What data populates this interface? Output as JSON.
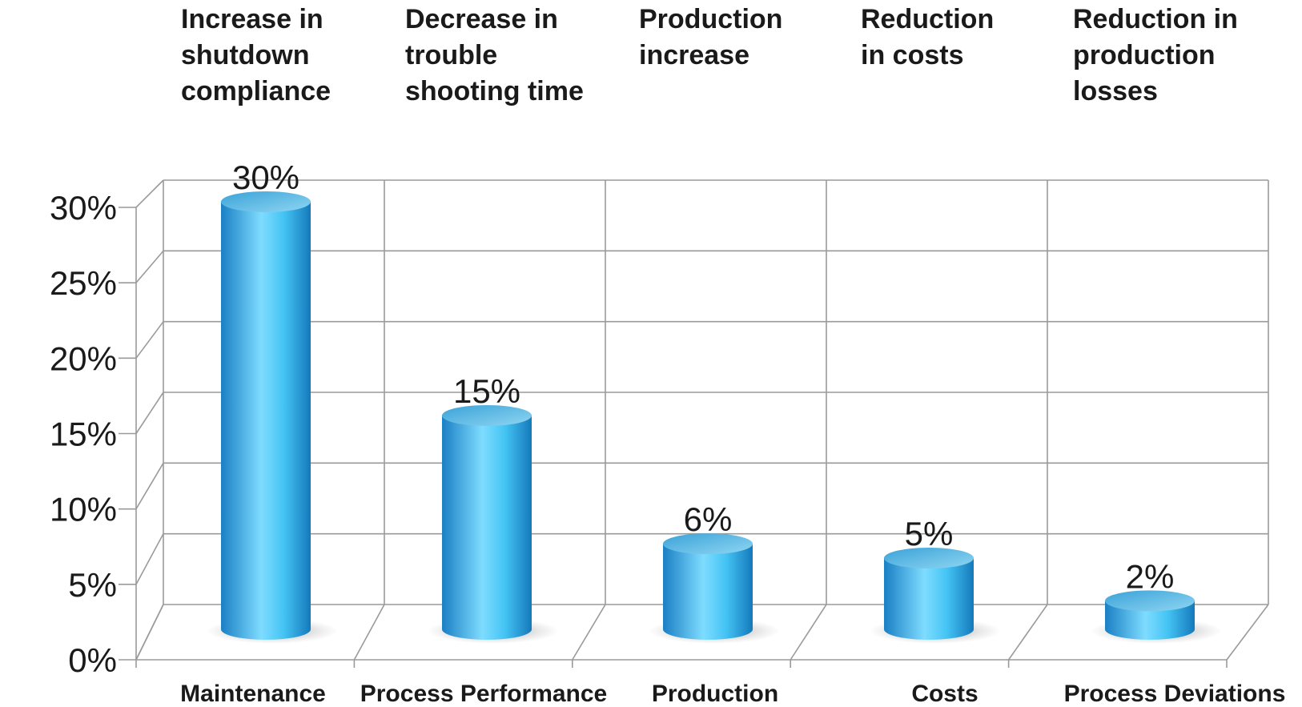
{
  "headers": [
    "Increase in\nshutdown\ncompliance",
    "Decrease in\ntrouble\nshooting time",
    "Production\nincrease",
    "Reduction\nin costs",
    "Reduction in\nproduction\nlosses"
  ],
  "chart_data": {
    "type": "bar",
    "style": "3d-cylinder",
    "categories": [
      "Maintenance",
      "Process Performance",
      "Production",
      "Costs",
      "Process Deviations"
    ],
    "values": [
      30,
      15,
      6,
      5,
      2
    ],
    "data_labels": [
      "30%",
      "15%",
      "6%",
      "5%",
      "2%"
    ],
    "y_ticks": [
      "0%",
      "5%",
      "10%",
      "15%",
      "20%",
      "25%",
      "30%"
    ],
    "ylim": [
      0,
      30
    ],
    "grid": true,
    "legend": "none",
    "colors": {
      "bar_light": "#7fdcff",
      "bar_mid": "#2bb4ef",
      "bar_dark": "#1a7fc4",
      "grid": "#9a9a9a"
    }
  }
}
